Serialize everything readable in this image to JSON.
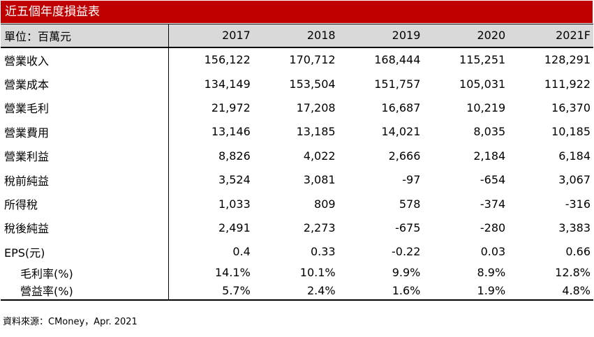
{
  "title": "近五個年度損益表",
  "header": {
    "unit_label": "單位：百萬元",
    "years": [
      "2017",
      "2018",
      "2019",
      "2020",
      "2021F"
    ]
  },
  "rows": [
    {
      "label": "營業收入",
      "values": [
        "156,122",
        "170,712",
        "168,444",
        "115,251",
        "128,291"
      ]
    },
    {
      "label": "營業成本",
      "values": [
        "134,149",
        "153,504",
        "151,757",
        "105,031",
        "111,922"
      ]
    },
    {
      "label": "營業毛利",
      "values": [
        "21,972",
        "17,208",
        "16,687",
        "10,219",
        "16,370"
      ]
    },
    {
      "label": "營業費用",
      "values": [
        "13,146",
        "13,185",
        "14,021",
        "8,035",
        "10,185"
      ]
    },
    {
      "label": "營業利益",
      "values": [
        "8,826",
        "4,022",
        "2,666",
        "2,184",
        "6,184"
      ]
    },
    {
      "label": "稅前純益",
      "values": [
        "3,524",
        "3,081",
        "-97",
        "-654",
        "3,067"
      ]
    },
    {
      "label": "所得稅",
      "values": [
        "1,033",
        "809",
        "578",
        "-374",
        "-316"
      ]
    },
    {
      "label": "稅後純益",
      "values": [
        "2,491",
        "2,273",
        "-675",
        "-280",
        "3,383"
      ]
    },
    {
      "label": "EPS(元)",
      "values": [
        "0.4",
        "0.33",
        "-0.22",
        "0.03",
        "0.66"
      ]
    },
    {
      "label": "毛利率(%)",
      "values": [
        "14.1%",
        "10.1%",
        "9.9%",
        "8.9%",
        "12.8%"
      ]
    },
    {
      "label": "營益率(%)",
      "values": [
        "5.7%",
        "2.4%",
        "1.6%",
        "1.9%",
        "4.8%"
      ]
    }
  ],
  "source": "資料來源：CMoney，Apr. 2021",
  "colors": {
    "title_bg": "#c00000",
    "header_bg": "#d9d9d9"
  }
}
